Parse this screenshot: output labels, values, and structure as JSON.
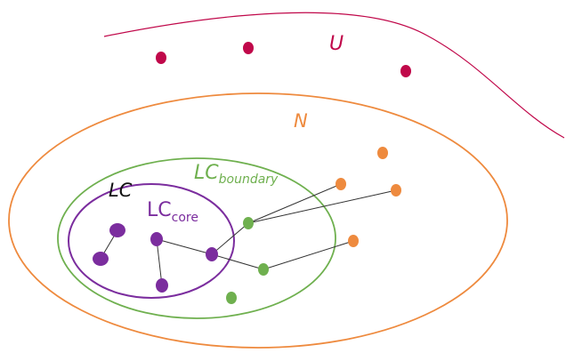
{
  "labels": {
    "u": "U",
    "n": "N",
    "lc": "LC",
    "lc_core_main": "LC",
    "lc_core_sub": "core",
    "lc_boundary_main": "LC",
    "lc_boundary_sub": "boundary"
  },
  "colors": {
    "u": "#c0084a",
    "n": "#ee8a3e",
    "boundary": "#6fb04f",
    "core": "#7b2d9e",
    "edge": "#333333"
  }
}
